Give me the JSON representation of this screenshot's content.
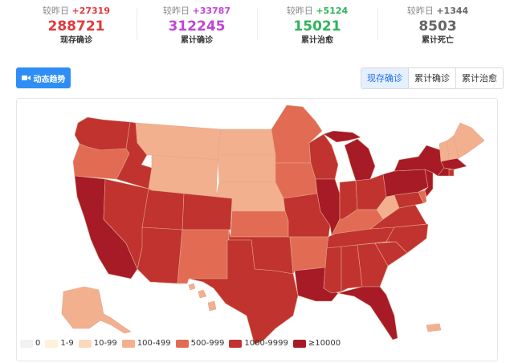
{
  "stats": [
    {
      "diff_label": "较昨日",
      "diff_value": "+27319",
      "value": "288721",
      "label": "现存确诊",
      "color": "#e2393b"
    },
    {
      "diff_label": "较昨日",
      "diff_value": "+33787",
      "value": "312245",
      "label": "累计确诊",
      "color": "#bf45d6"
    },
    {
      "diff_label": "较昨日",
      "diff_value": "+5124",
      "value": "15021",
      "label": "累计治愈",
      "color": "#2fb35b"
    },
    {
      "diff_label": "较昨日",
      "diff_value": "+1344",
      "value": "8503",
      "label": "累计死亡",
      "color": "#666666"
    }
  ],
  "controls": {
    "trend_button": "动态趋势",
    "tabs": [
      "现存确诊",
      "累计确诊",
      "累计治愈"
    ],
    "active_tab": 0
  },
  "legend": {
    "items": [
      {
        "label": "0",
        "color": "#f2f2f2"
      },
      {
        "label": "1-9",
        "color": "#fdf1dc"
      },
      {
        "label": "10-99",
        "color": "#fcd9bd"
      },
      {
        "label": "100-499",
        "color": "#f3b08e"
      },
      {
        "label": "500-999",
        "color": "#e26b54"
      },
      {
        "label": "1000-9999",
        "color": "#c1332e"
      },
      {
        "label": "≥10000",
        "color": "#a61b26"
      }
    ]
  },
  "map": {
    "state_bins": {
      "WA": 5,
      "OR": 4,
      "CA": 6,
      "NV": 5,
      "ID": 5,
      "MT": 3,
      "WY": 3,
      "UT": 5,
      "AZ": 5,
      "CO": 5,
      "NM": 4,
      "ND": 3,
      "SD": 3,
      "NE": 3,
      "KS": 4,
      "OK": 5,
      "TX": 5,
      "MN": 4,
      "IA": 4,
      "MO": 5,
      "AR": 4,
      "LA": 6,
      "WI": 5,
      "IL": 6,
      "MI": 6,
      "IN": 5,
      "OH": 5,
      "KY": 4,
      "TN": 5,
      "MS": 5,
      "AL": 5,
      "GA": 5,
      "FL": 6,
      "SC": 5,
      "NC": 5,
      "VA": 5,
      "WV": 3,
      "PA": 6,
      "NY": 6,
      "VT": 3,
      "NH": 3,
      "ME": 3,
      "MA": 6,
      "RI": 5,
      "CT": 6,
      "NJ": 6,
      "DE": 4,
      "MD": 5,
      "AK": 3,
      "HI": 3,
      "PR": 3
    }
  }
}
